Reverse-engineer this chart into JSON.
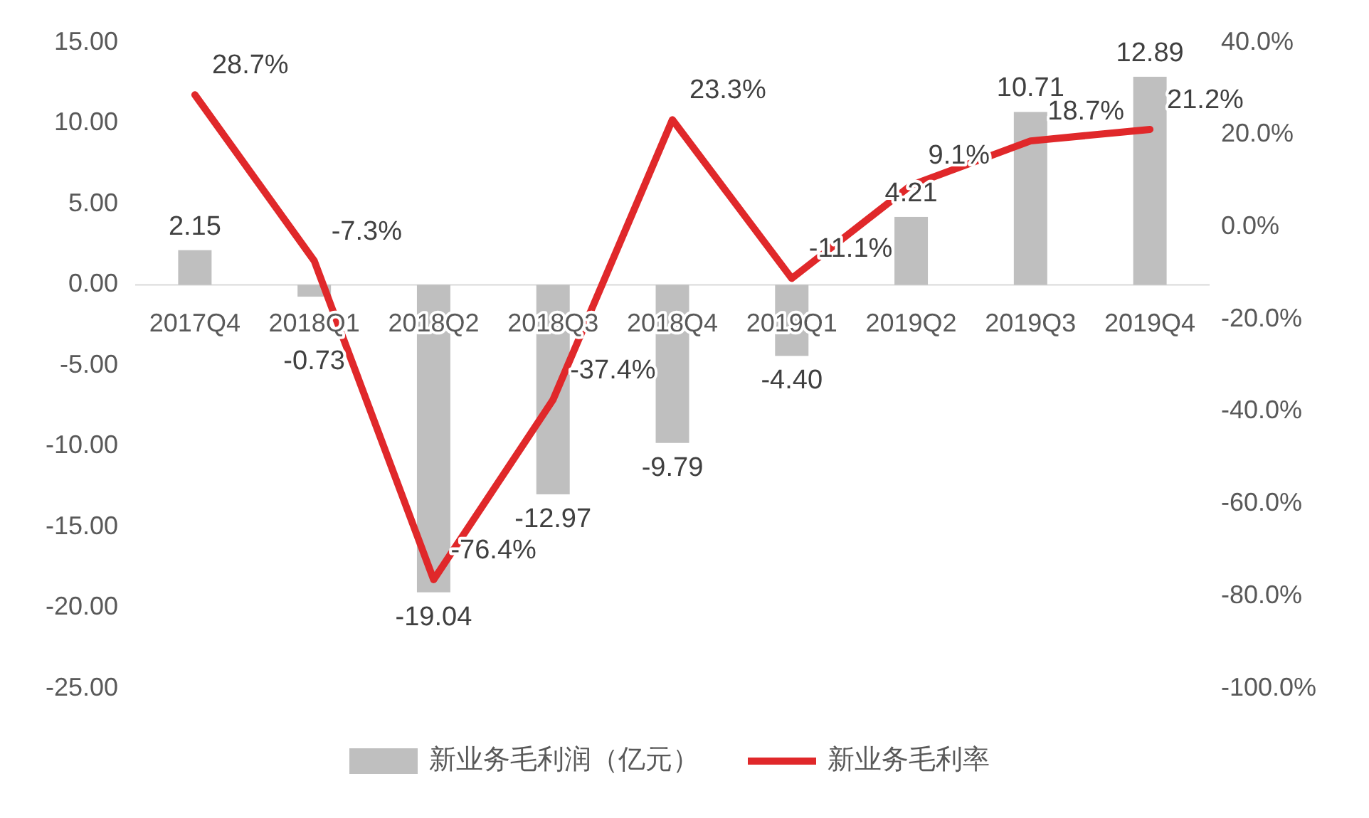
{
  "chart_data": {
    "type": "bar",
    "categories": [
      "2017Q4",
      "2018Q1",
      "2018Q2",
      "2018Q3",
      "2018Q4",
      "2019Q1",
      "2019Q2",
      "2019Q3",
      "2019Q4"
    ],
    "series": [
      {
        "name": "新业务毛利润（亿元）",
        "color": "#bfbfbf",
        "values": [
          2.15,
          -0.73,
          -19.04,
          -12.97,
          -9.79,
          -4.4,
          4.21,
          10.71,
          12.89
        ],
        "value_labels": [
          "2.15",
          "-0.73",
          "-19.04",
          "-12.97",
          "-9.79",
          "-4.40",
          "4.21",
          "10.71",
          "12.89"
        ]
      },
      {
        "name": "新业务毛利率",
        "type": "line",
        "axis": "y2",
        "color": "#e0282a",
        "values": [
          28.7,
          -7.3,
          -76.4,
          -37.4,
          23.3,
          -11.1,
          9.1,
          18.7,
          21.2
        ],
        "value_labels": [
          "28.7%",
          "-7.3%",
          "-76.4%",
          "-37.4%",
          "23.3%",
          "-11.1%",
          "9.1%",
          "18.7%",
          "21.2%"
        ]
      }
    ],
    "ylim": [
      -25,
      15
    ],
    "yticks": [
      {
        "value": -25,
        "label": "-25.00"
      },
      {
        "value": -20,
        "label": "-20.00"
      },
      {
        "value": -15,
        "label": "-15.00"
      },
      {
        "value": -10,
        "label": "-10.00"
      },
      {
        "value": -5,
        "label": "-5.00"
      },
      {
        "value": 0,
        "label": "0.00"
      },
      {
        "value": 5,
        "label": "5.00"
      },
      {
        "value": 10,
        "label": "10.00"
      },
      {
        "value": 15,
        "label": "15.00"
      }
    ],
    "y2lim": [
      -100,
      40
    ],
    "y2ticks": [
      {
        "value": -100,
        "label": "-100.0%"
      },
      {
        "value": -80,
        "label": "-80.0%"
      },
      {
        "value": -60,
        "label": "-60.0%"
      },
      {
        "value": -40,
        "label": "-40.0%"
      },
      {
        "value": -20,
        "label": "-20.0%"
      },
      {
        "value": 0,
        "label": "0.0%"
      },
      {
        "value": 20,
        "label": "20.0%"
      },
      {
        "value": 40,
        "label": "40.0%"
      }
    ],
    "grid": false,
    "legend": "bottom",
    "marker": "none",
    "line_style": "solid"
  }
}
